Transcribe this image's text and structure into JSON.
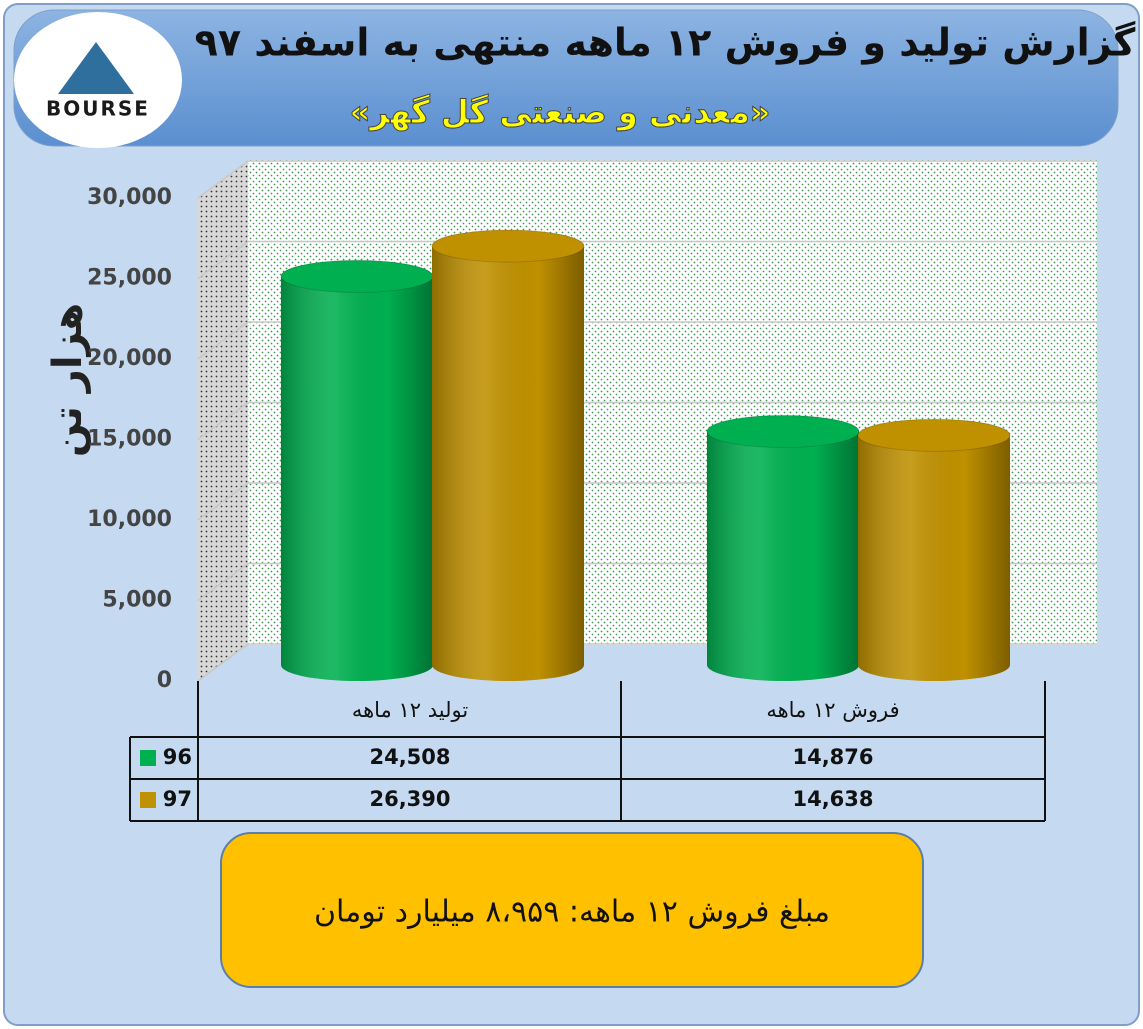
{
  "chart_data": {
    "type": "bar",
    "title": "گزارش تولید و فروش ۱۲ ماهه منتهی به اسفند ۹۷",
    "subtitle": "«معدنی و صنعتی گل گهر»",
    "logo_text": "BOURSE",
    "y_axis_label": "هزار تن",
    "categories": [
      "تولید ۱۲ ماهه",
      "فروش ۱۲ ماهه"
    ],
    "series": [
      {
        "name": "96",
        "color": "#00b050",
        "values": [
          24508,
          14876
        ],
        "value_labels": [
          "24,508",
          "14,876"
        ]
      },
      {
        "name": "97",
        "color": "#bf9000",
        "values": [
          26390,
          14638
        ],
        "value_labels": [
          "26,390",
          "14,638"
        ]
      }
    ],
    "ylim": [
      0,
      30000
    ],
    "yticks": [
      0,
      {
        "value": 5000,
        "label": "5,000"
      },
      {
        "value": 10000,
        "label": "10,000"
      },
      {
        "value": 15000,
        "label": "15,000"
      },
      {
        "value": 20000,
        "label": "20,000"
      },
      {
        "value": 25000,
        "label": "25,000"
      },
      {
        "value": 30000,
        "label": "30,000"
      }
    ],
    "grid": true,
    "annotation": "مبلغ فروش ۱۲ ماهه: ۸،۹۵۹ میلیارد تومان"
  }
}
